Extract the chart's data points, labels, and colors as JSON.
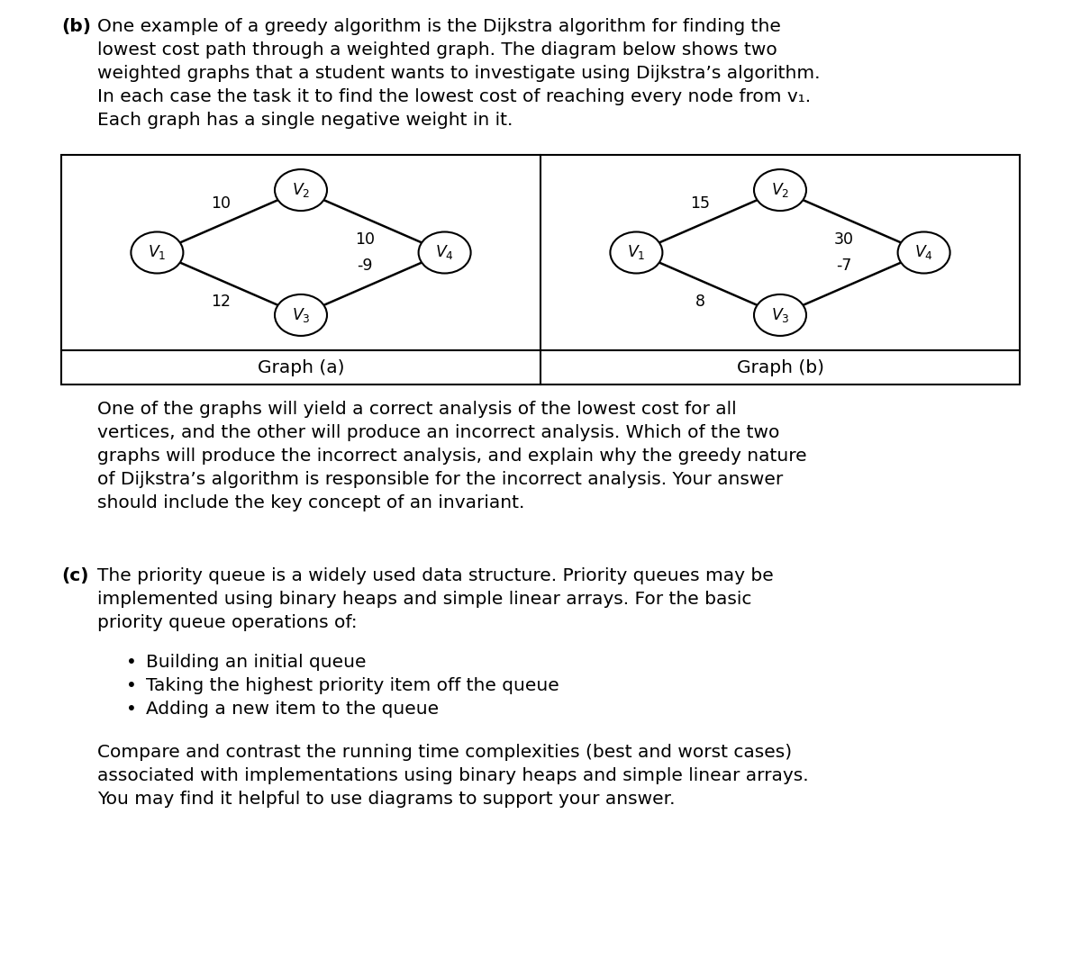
{
  "bg_color": "#ffffff",
  "text_color": "#000000",
  "font_family": "DejaVu Sans",
  "part_b_label": "(b)",
  "part_b_text_lines": [
    "One example of a greedy algorithm is the Dijkstra algorithm for finding the",
    "lowest cost path through a weighted graph. The diagram below shows two",
    "weighted graphs that a student wants to investigate using Dijkstra’s algorithm.",
    "In each case the task it to find the lowest cost of reaching every node from v₁.",
    "Each graph has a single negative weight in it."
  ],
  "graph_a_edges": [
    [
      "V1",
      "V2",
      "10",
      -1
    ],
    [
      "V1",
      "V3",
      "12",
      -1
    ],
    [
      "V2",
      "V4",
      "10",
      1
    ],
    [
      "V3",
      "V4",
      "-9",
      1
    ]
  ],
  "graph_b_edges": [
    [
      "V1",
      "V2",
      "15",
      -1
    ],
    [
      "V1",
      "V3",
      "8",
      -1
    ],
    [
      "V2",
      "V4",
      "30",
      1
    ],
    [
      "V3",
      "V4",
      "-7",
      1
    ]
  ],
  "graph_a_label": "Graph (a)",
  "graph_b_label": "Graph (b)",
  "answer_text_lines": [
    "One of the graphs will yield a correct analysis of the lowest cost for all",
    "vertices, and the other will produce an incorrect analysis. Which of the two",
    "graphs will produce the incorrect analysis, and explain why the greedy nature",
    "of Dijkstra’s algorithm is responsible for the incorrect analysis. Your answer",
    "should include the key concept of an invariant."
  ],
  "part_c_label": "(c)",
  "part_c_text_lines": [
    "The priority queue is a widely used data structure. Priority queues may be",
    "implemented using binary heaps and simple linear arrays. For the basic",
    "priority queue operations of:"
  ],
  "bullet_items": [
    "Building an initial queue",
    "Taking the highest priority item off the queue",
    "Adding a new item to the queue"
  ],
  "part_c_end_lines": [
    "Compare and contrast the running time complexities (best and worst cases)",
    "associated with implementations using binary heaps and simple linear arrays.",
    "You may find it helpful to use diagrams to support your answer."
  ],
  "font_size_body": 14.5,
  "font_size_node": 12.5,
  "font_size_edge_label": 12.5,
  "font_size_graph_label": 14.5
}
